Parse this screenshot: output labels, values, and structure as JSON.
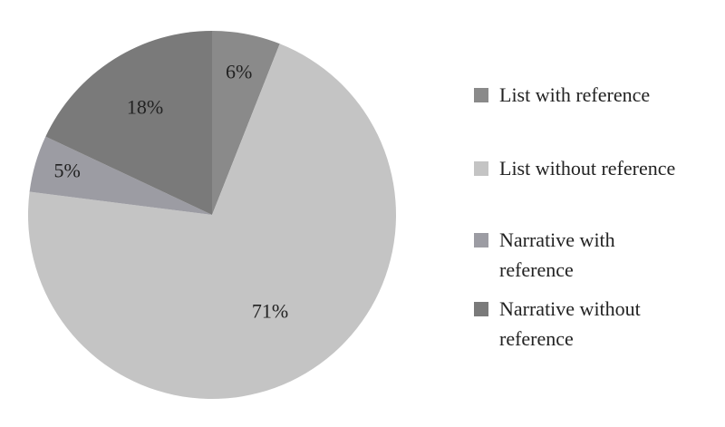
{
  "chart_data": {
    "type": "pie",
    "title": "",
    "slices": [
      {
        "label": "List with reference",
        "value": 6,
        "display": "6%",
        "color": "#8a8a8a"
      },
      {
        "label": "List without reference",
        "value": 71,
        "display": "71%",
        "color": "#c4c4c4"
      },
      {
        "label": "Narrative with reference",
        "value": 5,
        "display": "5%",
        "color": "#9c9ca3"
      },
      {
        "label": "Narrative without reference",
        "value": 18,
        "display": "18%",
        "color": "#7a7a7a"
      }
    ],
    "legend_position": "right",
    "start_angle": "12 o'clock",
    "direction": "clockwise"
  },
  "legend": {
    "items": [
      {
        "line1": "List with reference",
        "line2": ""
      },
      {
        "line1": "List without reference",
        "line2": ""
      },
      {
        "line1": "Narrative with",
        "line2": "reference"
      },
      {
        "line1": "Narrative without",
        "line2": "reference"
      }
    ]
  }
}
